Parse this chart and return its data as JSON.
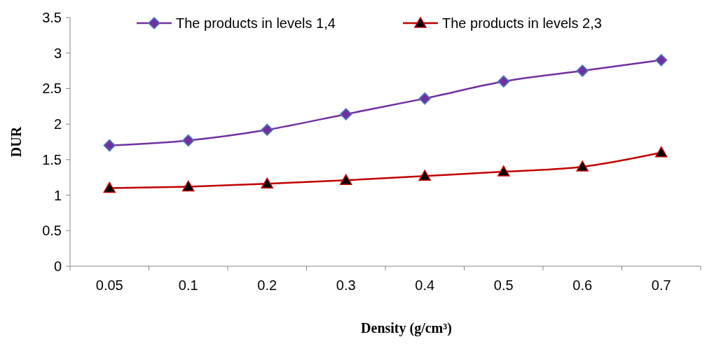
{
  "chart_data": {
    "type": "line",
    "xlabel": "Density (g/cm³)",
    "ylabel": "DUR",
    "categories": [
      "0.05",
      "0.1",
      "0.2",
      "0.3",
      "0.4",
      "0.5",
      "0.6",
      "0.7"
    ],
    "series": [
      {
        "name": "The products in levels 1,4",
        "color": "#7030a0",
        "marker": "diamond",
        "values": [
          1.7,
          1.77,
          1.92,
          2.14,
          2.36,
          2.6,
          2.75,
          2.9
        ]
      },
      {
        "name": "The products in levels 2,3",
        "color": "#c00000",
        "marker": "triangle",
        "values": [
          1.1,
          1.12,
          1.16,
          1.21,
          1.27,
          1.33,
          1.4,
          1.6
        ]
      }
    ],
    "ylim": [
      0,
      3.5
    ],
    "yticks": [
      0,
      0.5,
      1,
      1.5,
      2,
      2.5,
      3,
      3.5
    ],
    "grid": false,
    "legend": "top",
    "line_style": "solid"
  }
}
